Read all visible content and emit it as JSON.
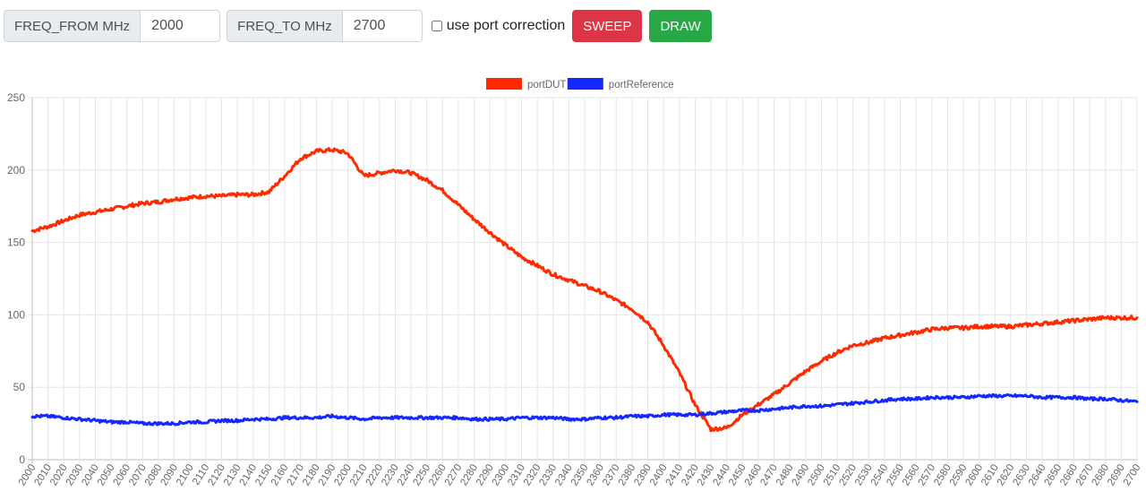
{
  "toolbar": {
    "freq_from_label": "FREQ_FROM MHz",
    "freq_from_value": "2000",
    "freq_to_label": "FREQ_TO MHz",
    "freq_to_value": "2700",
    "port_correction_label": "use port correction",
    "port_correction_checked": false,
    "sweep_label": "SWEEP",
    "draw_label": "DRAW"
  },
  "colors": {
    "danger": "#dc3545",
    "success": "#28a745",
    "series_dut": "#ff2a00",
    "series_ref": "#1428ff"
  },
  "chart_data": {
    "type": "line",
    "title": "",
    "xlabel": "",
    "ylabel": "",
    "xlim": [
      2000,
      2700
    ],
    "ylim": [
      0,
      250
    ],
    "x_tick_step": 10,
    "y_ticks": [
      0,
      50,
      100,
      150,
      200,
      250
    ],
    "grid": true,
    "legend": "top-center",
    "x": [
      2000,
      2010,
      2020,
      2030,
      2040,
      2050,
      2060,
      2070,
      2080,
      2090,
      2100,
      2110,
      2120,
      2130,
      2140,
      2150,
      2160,
      2170,
      2180,
      2190,
      2199,
      2201,
      2210,
      2220,
      2230,
      2240,
      2250,
      2260,
      2270,
      2280,
      2290,
      2300,
      2310,
      2320,
      2330,
      2340,
      2350,
      2360,
      2370,
      2380,
      2390,
      2400,
      2410,
      2420,
      2430,
      2440,
      2450,
      2460,
      2470,
      2480,
      2490,
      2500,
      2510,
      2520,
      2530,
      2540,
      2550,
      2560,
      2570,
      2580,
      2590,
      2600,
      2610,
      2620,
      2630,
      2640,
      2650,
      2660,
      2670,
      2680,
      2690,
      2700
    ],
    "series": [
      {
        "name": "portDUT",
        "color": "#ff2a00",
        "values": [
          158,
          161,
          165,
          169,
          171,
          173,
          175,
          177,
          178,
          180,
          181,
          182,
          182,
          183,
          183,
          185,
          196,
          208,
          213,
          214,
          212,
          210,
          196,
          198,
          200,
          198,
          193,
          186,
          176,
          166,
          157,
          148,
          140,
          134,
          128,
          124,
          120,
          116,
          110,
          104,
          95,
          79,
          60,
          38,
          21,
          22,
          31,
          38,
          45,
          53,
          61,
          68,
          74,
          79,
          81,
          84,
          86,
          88,
          90,
          91,
          91,
          92,
          92,
          92,
          93,
          94,
          95,
          96,
          97,
          98,
          98,
          98
        ]
      },
      {
        "name": "portReference",
        "color": "#1428ff",
        "values": [
          30,
          30,
          29,
          28,
          27,
          26,
          26,
          25,
          25,
          25,
          26,
          26,
          27,
          27,
          28,
          28,
          29,
          29,
          29,
          30,
          29,
          29,
          28,
          29,
          29,
          29,
          29,
          29,
          29,
          28,
          28,
          28,
          29,
          29,
          29,
          28,
          28,
          29,
          29,
          30,
          30,
          31,
          31,
          31,
          32,
          33,
          34,
          34,
          35,
          36,
          37,
          37,
          38,
          39,
          40,
          41,
          42,
          42,
          43,
          43,
          43,
          44,
          44,
          44,
          44,
          43,
          43,
          43,
          42,
          42,
          41,
          40
        ]
      }
    ]
  }
}
